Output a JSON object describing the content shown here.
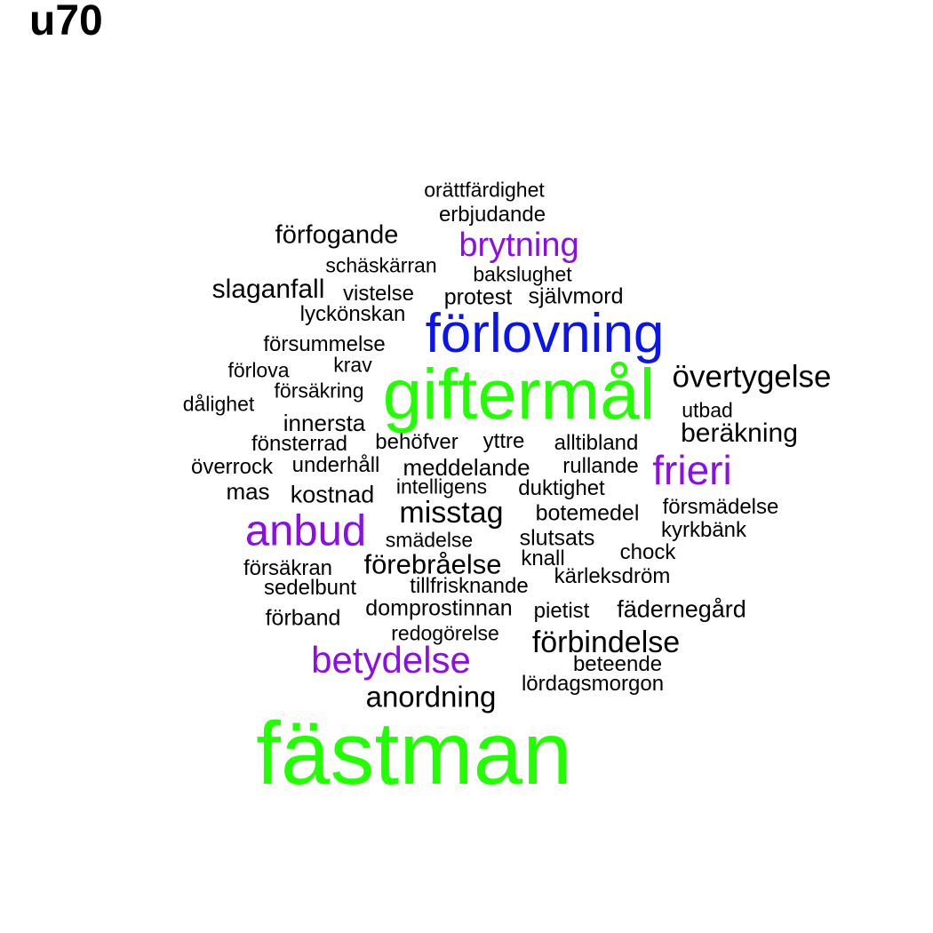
{
  "title": "u70",
  "colors": {
    "black": "#000000",
    "green": "#22ff00",
    "blue": "#0a14ee",
    "purple": "#8b0ee6"
  },
  "words": [
    "orättfärdighet",
    "erbjudande",
    "förfogande",
    "brytning",
    "schäskärran",
    "bakslughet",
    "slaganfall",
    "vistelse",
    "protest",
    "självmord",
    "lyckönskan",
    "förlovning",
    "försummelse",
    "krav",
    "förlova",
    "övertygelse",
    "giftermål",
    "försäkring",
    "dålighet",
    "utbad",
    "innersta",
    "beräkning",
    "fönsterrad",
    "behöfver",
    "yttre",
    "alltibland",
    "överrock",
    "underhåll",
    "meddelande",
    "rullande",
    "frieri",
    "mas",
    "intelligens",
    "kostnad",
    "duktighet",
    "misstag",
    "botemedel",
    "försmädelse",
    "anbud",
    "kyrkbänk",
    "smädelse",
    "slutsats",
    "chock",
    "försäkran",
    "förebråelse",
    "knall",
    "kärleksdröm",
    "sedelbunt",
    "tillfrisknande",
    "domprostinnan",
    "pietist",
    "fädernegård",
    "förband",
    "redogörelse",
    "förbindelse",
    "betydelse",
    "beteende",
    "lördagsmorgon",
    "anordning",
    "fästman"
  ]
}
